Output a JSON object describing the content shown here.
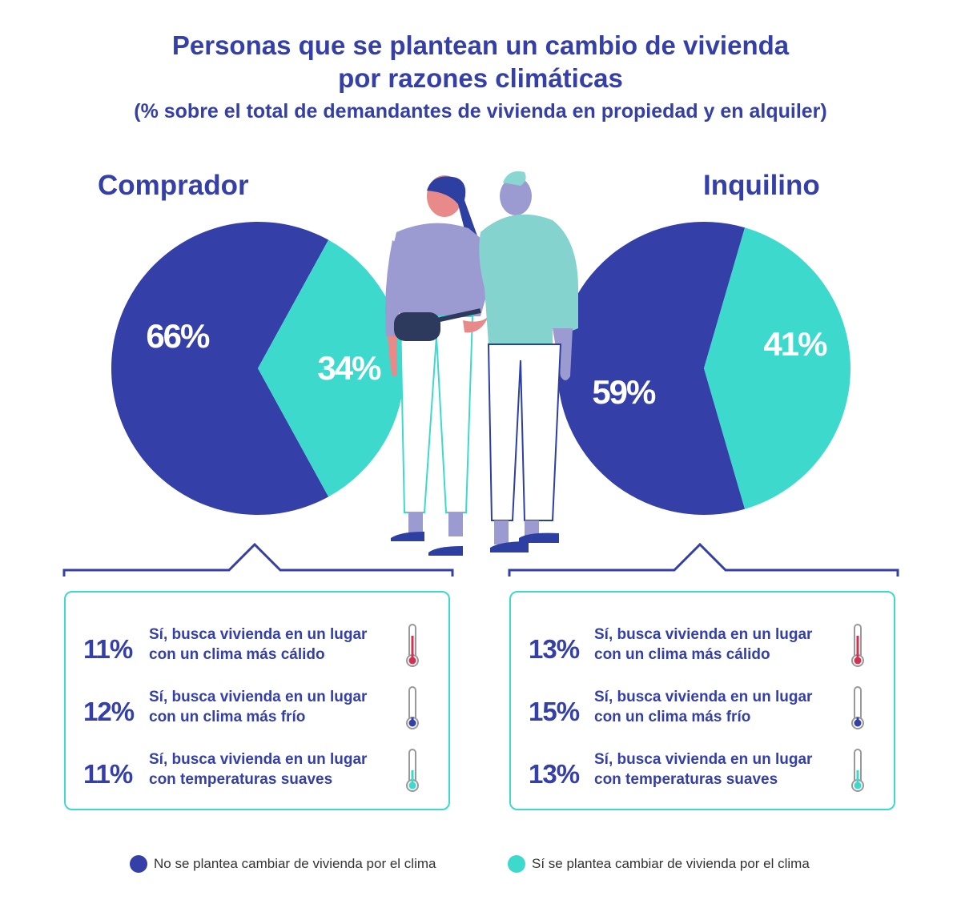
{
  "title": {
    "line1": "Personas que se plantean un cambio de vivienda",
    "line2": "por razones climáticas",
    "subtitle": "(% sobre el total de demandantes de vivienda en propiedad y en alquiler)"
  },
  "colors": {
    "dark": "#343fa8",
    "teal": "#3dd9cd",
    "warm": "#d43050",
    "cold": "#343fa8",
    "mild": "#3dd9cd"
  },
  "chart_data": [
    {
      "type": "pie",
      "title": "Comprador",
      "slices": [
        {
          "label": "No se plantea cambiar de vivienda por el clima",
          "value": 66,
          "display": "66%",
          "color": "#343fa8"
        },
        {
          "label": "Sí se plantea cambiar de vivienda por el clima",
          "value": 34,
          "display": "34%",
          "color": "#3dd9cd"
        }
      ]
    },
    {
      "type": "pie",
      "title": "Inquilino",
      "slices": [
        {
          "label": "No se plantea cambiar de vivienda por el clima",
          "value": 59,
          "display": "59%",
          "color": "#343fa8"
        },
        {
          "label": "Sí se plantea cambiar de vivienda por el clima",
          "value": 41,
          "display": "41%",
          "color": "#3dd9cd"
        }
      ]
    }
  ],
  "breakdown": {
    "comprador": [
      {
        "pct": "11%",
        "line1": "Sí, busca vivienda en un lugar",
        "line2": "con un clima más cálido",
        "icon": "thermometer-warm-icon"
      },
      {
        "pct": "12%",
        "line1": "Sí, busca vivienda en un lugar",
        "line2": "con un clima más frío",
        "icon": "thermometer-cold-icon"
      },
      {
        "pct": "11%",
        "line1": "Sí, busca vivienda en un lugar",
        "line2": "con temperaturas suaves",
        "icon": "thermometer-mild-icon"
      }
    ],
    "inquilino": [
      {
        "pct": "13%",
        "line1": "Sí, busca vivienda en un lugar",
        "line2": "con un clima más cálido",
        "icon": "thermometer-warm-icon"
      },
      {
        "pct": "15%",
        "line1": "Sí, busca vivienda en un lugar",
        "line2": "con un clima más frío",
        "icon": "thermometer-cold-icon"
      },
      {
        "pct": "13%",
        "line1": "Sí, busca vivienda en un lugar",
        "line2": "con temperaturas suaves",
        "icon": "thermometer-mild-icon"
      }
    ]
  },
  "legend": [
    {
      "label": "No se plantea cambiar de vivienda por el clima",
      "color": "#343fa8"
    },
    {
      "label": "Sí se plantea cambiar de vivienda por el clima",
      "color": "#3dd9cd"
    }
  ]
}
